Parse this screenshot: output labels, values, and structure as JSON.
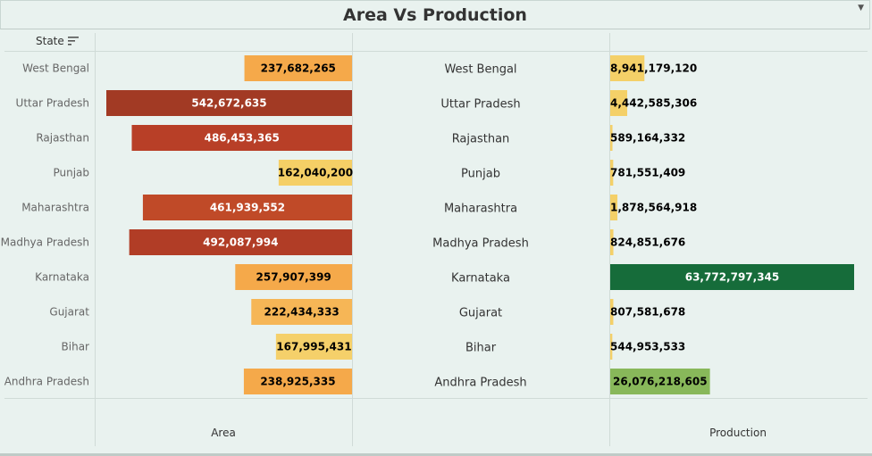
{
  "title": "Area Vs Production",
  "state_header": "State",
  "chart_data": {
    "type": "bar",
    "title": "Area Vs Production",
    "categories": [
      "West Bengal",
      "Uttar Pradesh",
      "Rajasthan",
      "Punjab",
      "Maharashtra",
      "Madhya Pradesh",
      "Karnataka",
      "Gujarat",
      "Bihar",
      "Andhra Pradesh"
    ],
    "series": [
      {
        "name": "Area",
        "values": [
          237682265,
          542672635,
          486453365,
          162040200,
          461939552,
          492087994,
          257907399,
          222434333,
          167995431,
          238925335
        ],
        "labels": [
          "237,682,265",
          "542,672,635",
          "486,453,365",
          "162,040,200",
          "461,939,552",
          "492,087,994",
          "257,907,399",
          "222,434,333",
          "167,995,431",
          "238,925,335"
        ]
      },
      {
        "name": "Production",
        "values": [
          8941179120,
          4442585306,
          589164332,
          781551409,
          1878564918,
          824851676,
          63772797345,
          807581678,
          544953533,
          26076218605
        ],
        "labels": [
          "8,941,179,120",
          "4,442,585,306",
          "589,164,332",
          "781,551,409",
          "1,878,564,918",
          "824,851,676",
          "63,772,797,345",
          "807,581,678",
          "544,953,533",
          "26,076,218,605"
        ]
      }
    ],
    "xlabel_left": "Area",
    "xlabel_right": "Production",
    "area_colors": [
      "#f5a94a",
      "#a23a24",
      "#b83f27",
      "#f5cf66",
      "#c04a28",
      "#b13d26",
      "#f5a94a",
      "#f6b656",
      "#f5d06a",
      "#f5a94a"
    ],
    "production_colors": [
      "#f4d068",
      "#f4d068",
      "#f4d068",
      "#f4d068",
      "#f4d068",
      "#f4d068",
      "#166c3a",
      "#f4d068",
      "#f4d068",
      "#88b85a"
    ],
    "area_label_colors": [
      "#000000",
      "#ffffff",
      "#ffffff",
      "#000000",
      "#ffffff",
      "#ffffff",
      "#000000",
      "#000000",
      "#000000",
      "#000000"
    ],
    "production_label_colors": [
      "#000000",
      "#000000",
      "#000000",
      "#000000",
      "#000000",
      "#000000",
      "#ffffff",
      "#000000",
      "#000000",
      "#000000"
    ]
  }
}
